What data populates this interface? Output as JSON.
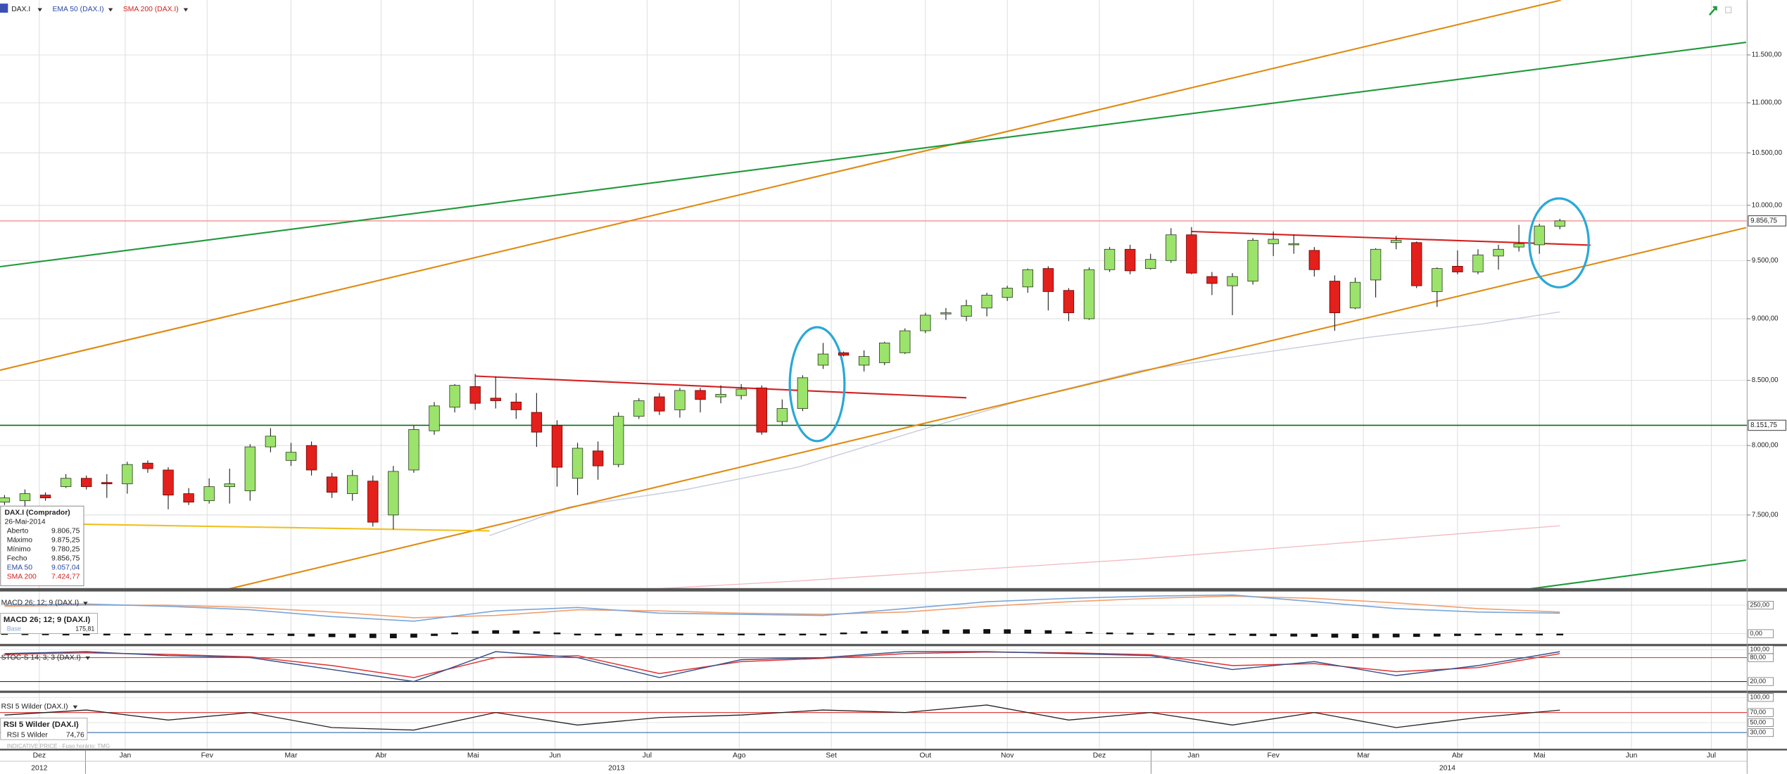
{
  "chart_data": {
    "type": "candlestick",
    "toolbar": {
      "symbol": "DAX.I",
      "ema": "EMA 50 (DAX.I)",
      "sma": "SMA 200 (DAX.I)"
    },
    "log_scale": true,
    "ylim": [
      7000,
      12100
    ],
    "yticks": [
      {
        "value": 7500,
        "label": "7.500,00"
      },
      {
        "value": 8000,
        "label": "8.000,00"
      },
      {
        "value": 8500,
        "label": "8.500,00"
      },
      {
        "value": 9000,
        "label": "9.000,00"
      },
      {
        "value": 9500,
        "label": "9.500,00"
      },
      {
        "value": 10000,
        "label": "10.000,00"
      },
      {
        "value": 10500,
        "label": "10.500,00"
      },
      {
        "value": 11000,
        "label": "11.000,00"
      },
      {
        "value": 11500,
        "label": "11.500,00"
      }
    ],
    "xlim": [
      -0.22,
      85.15
    ],
    "xticks": [
      {
        "value": 1.7,
        "label": "Dez"
      },
      {
        "value": 5.9,
        "label": "Jan"
      },
      {
        "value": 9.9,
        "label": "Fev"
      },
      {
        "value": 14,
        "label": "Mar"
      },
      {
        "value": 18.4,
        "label": "Abr"
      },
      {
        "value": 22.9,
        "label": "Mai"
      },
      {
        "value": 26.9,
        "label": "Jun"
      },
      {
        "value": 31.4,
        "label": "Jul"
      },
      {
        "value": 35.9,
        "label": "Ago"
      },
      {
        "value": 40.4,
        "label": "Set"
      },
      {
        "value": 45,
        "label": "Out"
      },
      {
        "value": 49,
        "label": "Nov"
      },
      {
        "value": 53.5,
        "label": "Dez"
      },
      {
        "value": 58.1,
        "label": "Jan"
      },
      {
        "value": 62,
        "label": "Fev"
      },
      {
        "value": 66.4,
        "label": "Mar"
      },
      {
        "value": 71,
        "label": "Abr"
      },
      {
        "value": 75,
        "label": "Mai"
      },
      {
        "value": 79.5,
        "label": "Jun"
      },
      {
        "value": 83.4,
        "label": "Jul"
      }
    ],
    "years": [
      {
        "value": 1.7,
        "label": "2012"
      },
      {
        "value": 29.9,
        "label": "2013"
      },
      {
        "value": 70.5,
        "label": "2014"
      }
    ],
    "up_color": "#9be36b",
    "down_color": "#e3201b",
    "open": [
      7590,
      7600,
      7640,
      7700,
      7760,
      7730,
      7720,
      7870,
      7820,
      7650,
      7600,
      7700,
      7670,
      7990,
      7890,
      8000,
      7770,
      7650,
      7740,
      7500,
      7820,
      8110,
      8290,
      8450,
      8360,
      8330,
      8250,
      8150,
      7760,
      7960,
      7860,
      8220,
      8370,
      8270,
      8420,
      8370,
      8380,
      8440,
      8180,
      8280,
      8620,
      8720,
      8620,
      8640,
      8720,
      8900,
      9040,
      9020,
      9090,
      9180,
      9270,
      9430,
      9240,
      9000,
      9420,
      9600,
      9430,
      9500,
      9730,
      9360,
      9280,
      9320,
      9650,
      9640,
      9590,
      9320,
      9090,
      9330,
      9660,
      9660,
      9230,
      9450,
      9400,
      9540,
      9620,
      9640,
      9806.75
    ],
    "high": [
      7640,
      7680,
      7660,
      7790,
      7780,
      7790,
      7880,
      7890,
      7840,
      7690,
      7760,
      7830,
      8010,
      8130,
      8020,
      8030,
      7800,
      7820,
      7780,
      7850,
      8150,
      8330,
      8470,
      8550,
      8530,
      8400,
      8400,
      8190,
      8020,
      8030,
      8250,
      8360,
      8400,
      8440,
      8440,
      8460,
      8470,
      8460,
      8350,
      8540,
      8800,
      8730,
      8740,
      8810,
      8920,
      9050,
      9090,
      9160,
      9220,
      9280,
      9430,
      9450,
      9260,
      9440,
      9620,
      9640,
      9560,
      9790,
      9800,
      9400,
      9390,
      9700,
      9760,
      9730,
      9620,
      9370,
      9350,
      9610,
      9720,
      9670,
      9440,
      9590,
      9600,
      9640,
      9820,
      9830,
      9875.25
    ],
    "low": [
      7570,
      7560,
      7600,
      7690,
      7680,
      7620,
      7650,
      7800,
      7540,
      7570,
      7580,
      7580,
      7600,
      7950,
      7850,
      7780,
      7620,
      7600,
      7420,
      7400,
      7800,
      8080,
      8250,
      8270,
      8280,
      8200,
      7990,
      7700,
      7640,
      7750,
      7840,
      8200,
      8230,
      8210,
      8250,
      8320,
      8350,
      8080,
      8150,
      8260,
      8590,
      8690,
      8570,
      8620,
      8710,
      8880,
      8990,
      8980,
      9020,
      9150,
      9220,
      9070,
      8980,
      8990,
      9400,
      9380,
      9420,
      9480,
      9380,
      9200,
      9030,
      9290,
      9540,
      9560,
      9360,
      8900,
      9080,
      9180,
      9600,
      9260,
      9100,
      9380,
      9380,
      9420,
      9580,
      9560,
      9780.25
    ],
    "close": [
      7620,
      7650,
      7620,
      7760,
      7700,
      7720,
      7860,
      7830,
      7640,
      7590,
      7700,
      7720,
      7990,
      8070,
      7950,
      7820,
      7660,
      7780,
      7450,
      7810,
      8120,
      8300,
      8460,
      8320,
      8340,
      8270,
      8100,
      7840,
      7980,
      7850,
      8220,
      8340,
      8260,
      8420,
      8350,
      8390,
      8430,
      8100,
      8280,
      8520,
      8710,
      8700,
      8690,
      8800,
      8900,
      9030,
      9050,
      9110,
      9200,
      9260,
      9420,
      9230,
      9050,
      9420,
      9600,
      9410,
      9510,
      9730,
      9390,
      9300,
      9360,
      9680,
      9690,
      9650,
      9420,
      9050,
      9310,
      9600,
      9680,
      9280,
      9430,
      9400,
      9550,
      9600,
      9650,
      9810,
      9856.75
    ],
    "ema": {
      "color": "#c8cdde",
      "x": [
        23.7,
        27.6,
        33.2,
        38.8,
        44.3,
        49.9,
        55.5,
        61,
        66.6,
        72.2,
        76
      ],
      "values": [
        7358,
        7556,
        7676,
        7842,
        8095,
        8353,
        8577,
        8710,
        8845,
        8956,
        9057.04
      ]
    },
    "sma": {
      "color": "#f2b8c0",
      "x": [
        30,
        38.8,
        55.5,
        76
      ],
      "values": [
        6990,
        7054,
        7200,
        7424.77
      ]
    },
    "trendlines": [
      {
        "color": "#e08a10",
        "x1": -0.22,
        "y1": 8580,
        "x2": 76.05,
        "y2": 12100
      },
      {
        "color": "#1e9a3a",
        "x1": -0.22,
        "y1": 9446,
        "x2": 85.1,
        "y2": 11635
      },
      {
        "color": "#e08a10",
        "x1": 10.9,
        "y1": 7000,
        "x2": 85.1,
        "y2": 9795
      },
      {
        "color": "#1e9a3a",
        "x1": 74.4,
        "y1": 7000,
        "x2": 85.1,
        "y2": 7192
      },
      {
        "color": "#d42020",
        "x1": 23,
        "y1": 8533,
        "x2": 47,
        "y2": 8363
      },
      {
        "color": "#d42020",
        "x1": 58,
        "y1": 9760,
        "x2": 77.5,
        "y2": 9637
      },
      {
        "color": "#f0c020",
        "x1": -0.22,
        "y1": 7445,
        "x2": 23.7,
        "y2": 7390
      }
    ],
    "hlines": [
      {
        "value": 9856.75,
        "label": "9.856,75",
        "color": "#f4a0a0"
      },
      {
        "value": 8151.75,
        "label": "8.151,75",
        "color": "#0a6a1a"
      }
    ],
    "tooltip": {
      "title": "DAX.I (Comprador)",
      "date": "26-Mai-2014",
      "rows": [
        [
          "Aberto",
          "9.806,75"
        ],
        [
          "Máximo",
          "9.875,25"
        ],
        [
          "Mínimo",
          "9.780,25"
        ],
        [
          "Fecho",
          "9.856,75"
        ],
        [
          "EMA 50",
          "9.057,04"
        ],
        [
          "SMA 200",
          "7.424,77"
        ]
      ]
    },
    "footnote": "INDICATIVE PRICE · Fuso horário: TMG",
    "macd": {
      "label": "MACD 26; 12; 9 (DAX.I)",
      "legend": {
        "title": "MACD 26; 12; 9 (DAX.I)",
        "base": "Base",
        "value": "175,81"
      },
      "ylim": [
        -100,
        360
      ],
      "yticks": [
        {
          "value": 0,
          "label": "0,00"
        },
        {
          "value": 250,
          "label": "250,00"
        }
      ],
      "x": [
        0,
        4,
        8,
        12,
        16,
        20,
        24,
        28,
        32,
        36,
        40,
        44,
        48,
        52,
        56,
        60,
        64,
        68,
        72,
        76
      ],
      "macd": [
        250,
        260,
        240,
        210,
        150,
        110,
        200,
        230,
        180,
        170,
        160,
        220,
        280,
        310,
        330,
        340,
        280,
        220,
        190,
        180
      ],
      "signal": [
        240,
        250,
        250,
        230,
        190,
        140,
        160,
        210,
        200,
        180,
        170,
        190,
        240,
        280,
        310,
        330,
        310,
        270,
        220,
        190
      ],
      "histogram": [
        5,
        3,
        2,
        -2,
        -3,
        -4,
        -6,
        -8,
        -10,
        -12,
        -14,
        -12,
        -10,
        -15,
        -20,
        -25,
        -30,
        -35,
        -38,
        -40,
        -35,
        -20,
        10,
        25,
        30,
        28,
        20,
        10,
        -5,
        -15,
        -20,
        -15,
        -10,
        -5,
        0,
        -5,
        -8,
        -10,
        -12,
        -8,
        0,
        10,
        20,
        25,
        30,
        32,
        35,
        38,
        40,
        38,
        35,
        30,
        20,
        15,
        10,
        8,
        6,
        4,
        0,
        -10,
        -15,
        -20,
        -22,
        -25,
        -28,
        -35,
        -40,
        -38,
        -32,
        -28,
        -25,
        -20,
        -15,
        -10,
        -8,
        -5,
        -3
      ]
    },
    "stoch": {
      "label": "STOC-S 14; 3; 3 (DAX.I)",
      "ylim": [
        0,
        100
      ],
      "yticks": [
        {
          "value": 20,
          "label": "20,00"
        },
        {
          "value": 80,
          "label": "80,00"
        },
        {
          "value": 100,
          "label": "100,00"
        }
      ],
      "x": [
        0,
        4,
        8,
        12,
        16,
        20,
        24,
        28,
        32,
        36,
        40,
        44,
        48,
        52,
        56,
        60,
        64,
        68,
        72,
        76
      ],
      "k": [
        90,
        95,
        85,
        80,
        50,
        20,
        95,
        80,
        30,
        75,
        80,
        95,
        95,
        90,
        85,
        50,
        70,
        35,
        60,
        95
      ],
      "d": [
        88,
        92,
        88,
        82,
        60,
        30,
        80,
        85,
        40,
        70,
        78,
        90,
        94,
        92,
        87,
        60,
        65,
        45,
        55,
        90
      ]
    },
    "rsi": {
      "label": "RSI 5 Wilder (DAX.I)",
      "legend": {
        "title": "RSI 5 Wilder (DAX.I)",
        "name": "RSI 5 Wilder",
        "value": "74,76"
      },
      "ylim": [
        0,
        100
      ],
      "yticks": [
        {
          "value": 30,
          "label": "30,00"
        },
        {
          "value": 50,
          "label": "50,00"
        },
        {
          "value": 70,
          "label": "70,00"
        },
        {
          "value": 100,
          "label": "100,00"
        }
      ],
      "x": [
        0,
        4,
        8,
        12,
        16,
        20,
        24,
        28,
        32,
        36,
        40,
        44,
        48,
        52,
        56,
        60,
        64,
        68,
        72,
        76
      ],
      "values": [
        65,
        75,
        55,
        70,
        40,
        35,
        70,
        45,
        60,
        65,
        75,
        70,
        85,
        55,
        70,
        45,
        70,
        40,
        60,
        74.76
      ]
    }
  }
}
